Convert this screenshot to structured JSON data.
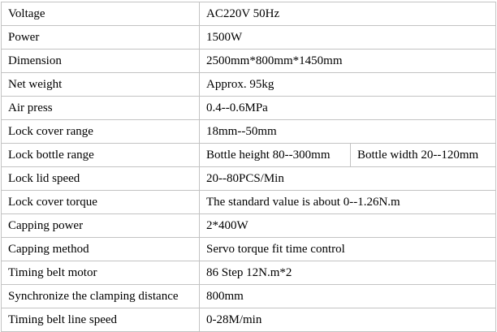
{
  "page": {
    "background_color": "#ffffff",
    "border_color": "#c3c3c3",
    "text_color": "#000000"
  },
  "table": {
    "rows": [
      {
        "label": "Voltage",
        "value": "AC220V 50Hz"
      },
      {
        "label": "Power",
        "value": "1500W"
      },
      {
        "label": "Dimension",
        "value": "2500mm*800mm*1450mm"
      },
      {
        "label": "Net weight",
        "value": "Approx. 95kg"
      },
      {
        "label": "Air press",
        "value": "0.4--0.6MPa"
      },
      {
        "label": "Lock cover range",
        "value": "18mm--50mm"
      },
      {
        "label": "Lock bottle range",
        "values": [
          "Bottle height 80--300mm",
          "Bottle width 20--120mm"
        ]
      },
      {
        "label": "Lock lid speed",
        "value": "20--80PCS/Min"
      },
      {
        "label": "Lock cover torque",
        "value": "The standard value is about 0--1.26N.m"
      },
      {
        "label": "Capping power",
        "value": "2*400W"
      },
      {
        "label": "Capping method",
        "value": "Servo torque fit time control"
      },
      {
        "label": "Timing belt motor",
        "value": "86 Step 12N.m*2"
      },
      {
        "label": "Synchronize the clamping distance",
        "value": "800mm"
      },
      {
        "label": "Timing belt line speed",
        "value": "0-28M/min"
      }
    ]
  }
}
